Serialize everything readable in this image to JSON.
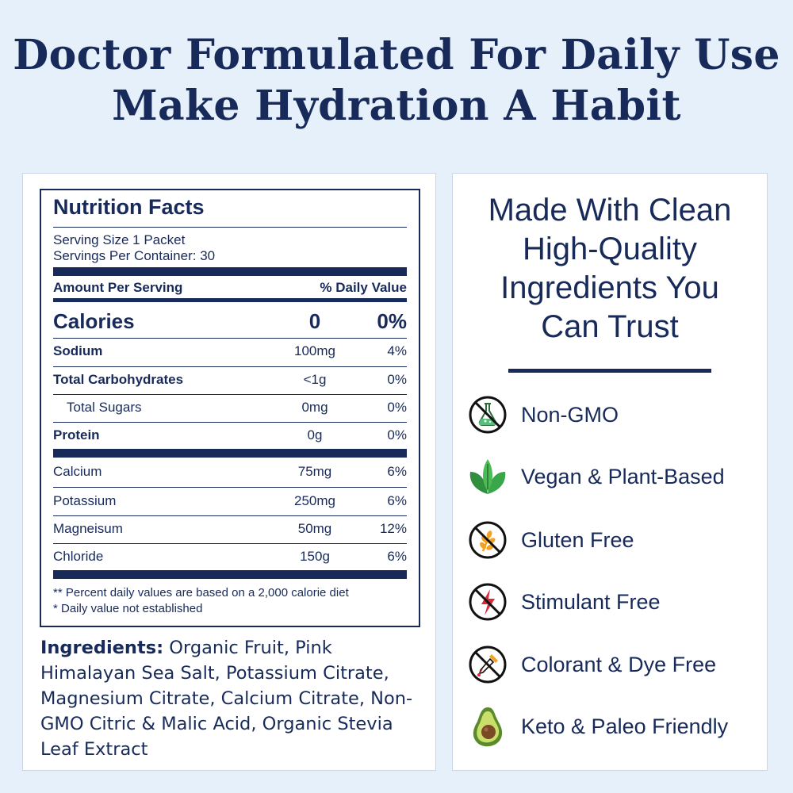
{
  "headline": {
    "line1": "Doctor Formulated For Daily Use",
    "line2": "Make Hydration A Habit"
  },
  "nutrition": {
    "title": "Nutrition Facts",
    "serving_size": "Serving Size 1 Packet",
    "servings_per_container": "Servings Per Container: 30",
    "amount_header": "Amount Per Serving",
    "dv_header": "% Daily Value",
    "calories": {
      "name": "Calories",
      "amount": "0",
      "dv": "0%"
    },
    "rows_main": [
      {
        "name": "Sodium",
        "amount": "100mg",
        "dv": "4%"
      },
      {
        "name": "Total Carbohydrates",
        "amount": "<1g",
        "dv": "0%"
      },
      {
        "name": "Total Sugars",
        "amount": "0mg",
        "dv": "0%"
      },
      {
        "name": "Protein",
        "amount": "0g",
        "dv": "0%"
      }
    ],
    "rows_minerals": [
      {
        "name": "Calcium",
        "amount": "75mg",
        "dv": "6%"
      },
      {
        "name": "Potassium",
        "amount": "250mg",
        "dv": "6%"
      },
      {
        "name": "Magneisum",
        "amount": "50mg",
        "dv": "12%"
      },
      {
        "name": "Chloride",
        "amount": "150g",
        "dv": "6%"
      }
    ],
    "note1": "** Percent daily values are based on a 2,000 calorie diet",
    "note2": "* Daily value not established"
  },
  "ingredients": {
    "label": "Ingredients:",
    "text": " Organic Fruit,  Pink Himalayan Sea Salt, Potassium Citrate, Magnesium Citrate, Calcium Citrate, Non-GMO Citric & Malic Acid, Organic Stevia Leaf Extract"
  },
  "clean": {
    "title_lines": [
      "Made With Clean",
      "High-Quality",
      "Ingredients You",
      "Can Trust"
    ],
    "features": [
      {
        "label": "Non-GMO",
        "icon": "no-gmo-flask-icon"
      },
      {
        "label": "Vegan & Plant-Based",
        "icon": "leaves-icon"
      },
      {
        "label": "Gluten Free",
        "icon": "no-wheat-icon"
      },
      {
        "label": "Stimulant Free",
        "icon": "no-lightning-icon"
      },
      {
        "label": "Colorant & Dye Free",
        "icon": "no-dropper-icon"
      },
      {
        "label": "Keto & Paleo Friendly",
        "icon": "avocado-icon"
      }
    ]
  },
  "colors": {
    "navy": "#172a5a",
    "background": "#e6f0fb",
    "accent_red": "#e0263a",
    "accent_orange": "#f3a122",
    "accent_green": "#3f9e3f"
  }
}
